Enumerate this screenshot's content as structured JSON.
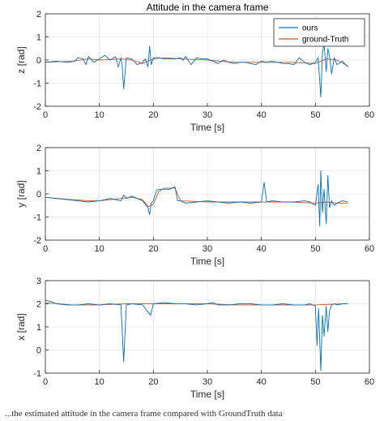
{
  "colors": {
    "ours": "#0072bd",
    "ground_truth": "#d95319",
    "axes": "#262626",
    "grid": "#e6e6e6"
  },
  "chart_data": [
    {
      "type": "line",
      "title": "Attitude in the camera frame",
      "xlabel": "Time [s]",
      "ylabel": "z [rad]",
      "xlim": [
        0,
        60
      ],
      "ylim": [
        -2,
        2
      ],
      "xticks": [
        0,
        10,
        20,
        30,
        40,
        50,
        60
      ],
      "yticks": [
        -2,
        -1,
        0,
        1,
        2
      ],
      "grid": true,
      "legend": "top-right",
      "series": [
        {
          "name": "ours",
          "color": "#0072bd",
          "x": [
            0,
            2,
            4,
            5.5,
            6,
            7,
            7.5,
            8,
            9,
            10,
            11,
            12,
            13,
            13.5,
            14,
            14.2,
            14.5,
            15,
            16,
            17,
            18,
            18.5,
            19,
            19.3,
            19.6,
            20,
            21,
            22,
            24,
            25,
            25.5,
            26,
            27,
            28,
            29,
            30,
            31,
            32,
            33,
            34,
            35,
            36,
            37,
            38,
            39,
            40,
            41,
            42,
            43,
            44,
            45,
            46,
            47,
            48,
            49,
            50,
            50.5,
            51,
            51.3,
            51.6,
            52,
            52.3,
            52.6,
            53,
            53.5,
            54,
            55,
            56
          ],
          "y": [
            -0.1,
            -0.05,
            -0.1,
            -0.05,
            0.1,
            0.05,
            -0.2,
            0.15,
            -0.1,
            0.05,
            0.2,
            0.0,
            0.15,
            -0.3,
            0.1,
            -0.2,
            -1.25,
            0.1,
            0.05,
            -0.2,
            -0.1,
            0.05,
            -0.3,
            0.6,
            -0.2,
            0.1,
            0.1,
            0.05,
            0.05,
            0.1,
            0.0,
            0.15,
            -0.2,
            0.1,
            0.05,
            0.05,
            -0.05,
            -0.15,
            0.0,
            -0.1,
            -0.15,
            -0.1,
            -0.1,
            -0.15,
            -0.2,
            -0.05,
            -0.1,
            -0.05,
            -0.1,
            -0.15,
            -0.15,
            -0.2,
            0.1,
            -0.1,
            -0.2,
            -0.1,
            0.1,
            -1.6,
            0.3,
            0.7,
            -0.5,
            0.5,
            0.2,
            -0.6,
            0.1,
            -0.2,
            -0.05,
            -0.3
          ]
        },
        {
          "name": "ground-Truth",
          "color": "#d95319",
          "x": [
            0,
            5,
            8,
            10,
            14,
            16,
            18,
            20,
            22,
            25,
            30,
            35,
            40,
            45,
            50,
            52,
            54,
            56
          ],
          "y": [
            -0.1,
            -0.05,
            0.05,
            0.0,
            0.05,
            0.0,
            -0.15,
            0.05,
            0.1,
            0.05,
            0.0,
            -0.1,
            -0.1,
            -0.1,
            -0.15,
            0.05,
            0.0,
            -0.25
          ]
        }
      ]
    },
    {
      "type": "line",
      "xlabel": "Time [s]",
      "ylabel": "y [rad]",
      "xlim": [
        0,
        60
      ],
      "ylim": [
        -2,
        2
      ],
      "xticks": [
        0,
        10,
        20,
        30,
        40,
        50,
        60
      ],
      "yticks": [
        -2,
        -1,
        0,
        1,
        2
      ],
      "grid": true,
      "series": [
        {
          "name": "ours",
          "color": "#0072bd",
          "x": [
            0,
            2,
            4,
            6,
            8,
            10,
            12,
            14,
            14.5,
            15,
            16,
            17,
            18,
            19,
            19.3,
            19.6,
            20,
            20.5,
            21,
            23,
            24,
            24.5,
            25,
            26,
            28,
            30,
            32,
            34,
            36,
            38,
            40,
            40.5,
            41,
            42,
            44,
            46,
            48,
            49,
            50,
            50.5,
            50.8,
            51,
            51.3,
            51.6,
            52,
            52.3,
            52.6,
            53,
            53.5,
            54,
            55,
            56
          ],
          "y": [
            -0.15,
            -0.2,
            -0.25,
            -0.3,
            -0.35,
            -0.3,
            -0.2,
            -0.3,
            -0.05,
            -0.2,
            -0.1,
            -0.2,
            -0.3,
            -0.6,
            -0.9,
            -0.4,
            -0.3,
            0.1,
            0.2,
            0.2,
            0.3,
            -0.3,
            -0.3,
            -0.4,
            -0.35,
            -0.3,
            -0.35,
            -0.4,
            -0.35,
            -0.4,
            -0.35,
            0.5,
            -0.35,
            -0.3,
            -0.35,
            -0.35,
            -0.3,
            -0.35,
            -0.5,
            0.4,
            -1.4,
            1.0,
            -0.8,
            0.2,
            -1.3,
            0.8,
            -0.6,
            -0.3,
            -0.5,
            -0.4,
            -0.3,
            -0.35
          ]
        },
        {
          "name": "ground-Truth",
          "color": "#d95319",
          "x": [
            0,
            5,
            8,
            10,
            12,
            14,
            16,
            18,
            19,
            20,
            21,
            22,
            24,
            25,
            30,
            35,
            40,
            45,
            50,
            52,
            54,
            56
          ],
          "y": [
            -0.15,
            -0.25,
            -0.3,
            -0.3,
            -0.25,
            -0.2,
            -0.15,
            -0.25,
            -0.55,
            -0.45,
            0.1,
            0.25,
            0.25,
            -0.3,
            -0.35,
            -0.35,
            -0.35,
            -0.35,
            -0.4,
            -0.35,
            -0.4,
            -0.4
          ]
        }
      ]
    },
    {
      "type": "line",
      "xlabel": "Time [s]",
      "ylabel": "x [rad]",
      "xlim": [
        0,
        60
      ],
      "ylim": [
        -1,
        3
      ],
      "xticks": [
        0,
        10,
        20,
        30,
        40,
        50,
        60
      ],
      "yticks": [
        -1,
        0,
        1,
        2,
        3
      ],
      "grid": true,
      "series": [
        {
          "name": "ours",
          "color": "#0072bd",
          "x": [
            0,
            1,
            2,
            4,
            6,
            8,
            10,
            12,
            14,
            14.5,
            15,
            16,
            18,
            19.5,
            20,
            22,
            24,
            26,
            28,
            30,
            31,
            32,
            34,
            36,
            38,
            40,
            42,
            44,
            46,
            48,
            49,
            50,
            50.3,
            50.6,
            51,
            51.3,
            51.6,
            52,
            52.3,
            52.6,
            53,
            53.5,
            54,
            55,
            56
          ],
          "y": [
            2.15,
            2.1,
            2.0,
            1.95,
            1.95,
            2.0,
            1.95,
            2.0,
            1.95,
            -0.5,
            1.95,
            2.0,
            1.95,
            1.5,
            2.0,
            2.05,
            2.0,
            2.0,
            1.95,
            2.0,
            2.05,
            1.95,
            1.95,
            2.0,
            2.0,
            1.95,
            1.95,
            2.0,
            1.95,
            1.95,
            2.0,
            1.9,
            0.2,
            1.8,
            -0.9,
            1.5,
            0.6,
            1.9,
            0.8,
            1.7,
            1.95,
            2.0,
            1.95,
            2.0,
            2.0
          ]
        },
        {
          "name": "ground-Truth",
          "color": "#d95319",
          "x": [
            0,
            5,
            10,
            15,
            20,
            25,
            30,
            35,
            40,
            45,
            50,
            55,
            56
          ],
          "y": [
            2.05,
            1.95,
            1.95,
            2.0,
            2.0,
            2.0,
            2.0,
            1.95,
            1.95,
            1.95,
            1.95,
            2.0,
            2.0
          ]
        }
      ]
    }
  ],
  "caption": "...the estimated attitude in the camera frame compared with GroundTruth data"
}
